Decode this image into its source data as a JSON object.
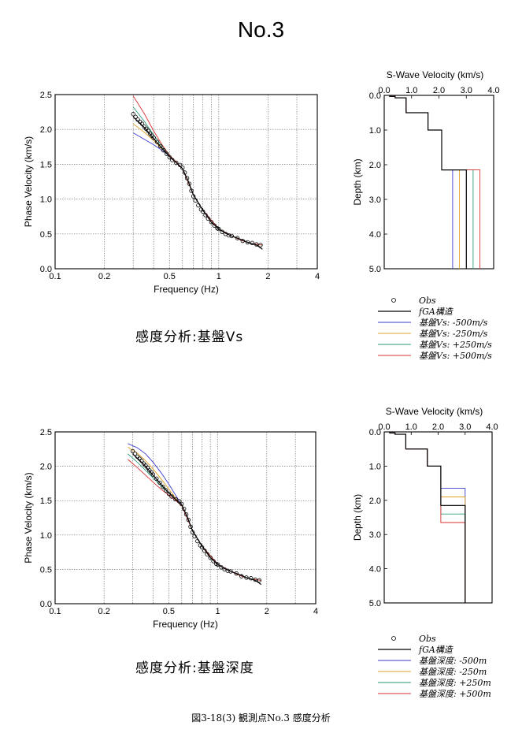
{
  "page": {
    "title": "No.3",
    "caption": "図3-18(3)   観測点No.3   感度分析"
  },
  "colors": {
    "obs": "#000000",
    "fga": "#000000",
    "m500": "#3b3bd0",
    "m250": "#e0a020",
    "p250": "#2a9a7a",
    "p500": "#d83030"
  },
  "chart_data": [
    {
      "id": "top-dispersion",
      "type": "line",
      "xlabel": "Frequency (Hz)",
      "ylabel": "Phase Velocity (km/s)",
      "xscale": "log",
      "xlim": [
        0.1,
        4
      ],
      "ylim": [
        0.0,
        2.5
      ],
      "xticks": [
        {
          "v": 0.1,
          "label": "0.1"
        },
        {
          "v": 0.2,
          "label": "0.2"
        },
        {
          "v": 0.5,
          "label": "0.5"
        },
        {
          "v": 1,
          "label": "1"
        },
        {
          "v": 2,
          "label": "2"
        },
        {
          "v": 4,
          "label": "4"
        }
      ],
      "yticks": [
        {
          "v": 0.0,
          "label": "0.0"
        },
        {
          "v": 0.5,
          "label": "0.5"
        },
        {
          "v": 1.0,
          "label": "1.0"
        },
        {
          "v": 1.5,
          "label": "1.5"
        },
        {
          "v": 2.0,
          "label": "2.0"
        },
        {
          "v": 2.5,
          "label": "2.5"
        }
      ],
      "grid": true,
      "series": [
        {
          "name": "Obs",
          "kind": "markers",
          "color": "#000000",
          "x": [
            0.3,
            0.31,
            0.32,
            0.33,
            0.34,
            0.35,
            0.36,
            0.37,
            0.38,
            0.39,
            0.4,
            0.42,
            0.44,
            0.46,
            0.48,
            0.5,
            0.52,
            0.55,
            0.58,
            0.6,
            0.62,
            0.64,
            0.66,
            0.68,
            0.7,
            0.72,
            0.75,
            0.78,
            0.8,
            0.83,
            0.86,
            0.9,
            0.94,
            0.98,
            1.0,
            1.05,
            1.1,
            1.15,
            1.2,
            1.3,
            1.4,
            1.5,
            1.6,
            1.7,
            1.8
          ],
          "y": [
            2.22,
            2.18,
            2.14,
            2.11,
            2.08,
            2.04,
            2.01,
            1.98,
            1.94,
            1.91,
            1.88,
            1.82,
            1.76,
            1.7,
            1.65,
            1.6,
            1.56,
            1.52,
            1.49,
            1.45,
            1.38,
            1.3,
            1.22,
            1.12,
            1.04,
            0.98,
            0.91,
            0.85,
            0.82,
            0.77,
            0.72,
            0.67,
            0.62,
            0.58,
            0.57,
            0.53,
            0.5,
            0.48,
            0.47,
            0.44,
            0.4,
            0.38,
            0.37,
            0.35,
            0.34
          ]
        },
        {
          "name": "fGA構造",
          "kind": "line",
          "color": "#000000",
          "x": [
            0.3,
            0.35,
            0.4,
            0.45,
            0.5,
            0.55,
            0.6,
            0.65,
            0.7,
            0.8,
            0.9,
            1.0,
            1.1,
            1.2,
            1.3,
            1.4,
            1.5,
            1.6,
            1.7,
            1.85
          ],
          "y": [
            2.18,
            2.03,
            1.87,
            1.73,
            1.61,
            1.52,
            1.44,
            1.26,
            1.06,
            0.84,
            0.67,
            0.57,
            0.51,
            0.47,
            0.44,
            0.41,
            0.38,
            0.36,
            0.34,
            0.28
          ]
        },
        {
          "name": "基盤Vs: -500m/s",
          "kind": "line",
          "color": "#3b3bd0",
          "x": [
            0.3,
            0.35,
            0.4,
            0.45,
            0.5,
            0.55,
            0.6,
            0.7,
            0.8,
            1.0,
            1.2,
            1.4,
            1.6,
            1.85
          ],
          "y": [
            1.95,
            1.86,
            1.78,
            1.7,
            1.62,
            1.53,
            1.44,
            1.06,
            0.84,
            0.57,
            0.47,
            0.4,
            0.36,
            0.34
          ]
        },
        {
          "name": "基盤Vs: -250m/s",
          "kind": "line",
          "color": "#e0a020",
          "x": [
            0.3,
            0.35,
            0.4,
            0.45,
            0.5,
            0.55,
            0.6,
            0.7,
            0.8,
            1.0,
            1.2,
            1.4,
            1.6,
            1.85
          ],
          "y": [
            2.08,
            1.96,
            1.84,
            1.72,
            1.62,
            1.53,
            1.44,
            1.06,
            0.84,
            0.57,
            0.47,
            0.4,
            0.36,
            0.34
          ]
        },
        {
          "name": "基盤Vs: +250m/s",
          "kind": "line",
          "color": "#2a9a7a",
          "x": [
            0.3,
            0.35,
            0.4,
            0.45,
            0.5,
            0.55,
            0.6,
            0.7,
            0.8,
            1.0,
            1.2,
            1.4,
            1.6,
            1.85
          ],
          "y": [
            2.32,
            2.12,
            1.92,
            1.76,
            1.62,
            1.53,
            1.44,
            1.06,
            0.84,
            0.57,
            0.47,
            0.4,
            0.36,
            0.34
          ]
        },
        {
          "name": "基盤Vs: +500m/s",
          "kind": "line",
          "color": "#d83030",
          "x": [
            0.3,
            0.35,
            0.4,
            0.45,
            0.5,
            0.55,
            0.6,
            0.7,
            0.8,
            1.0,
            1.2,
            1.4,
            1.6,
            1.85
          ],
          "y": [
            2.48,
            2.23,
            1.98,
            1.78,
            1.63,
            1.53,
            1.44,
            1.06,
            0.84,
            0.57,
            0.47,
            0.4,
            0.36,
            0.34
          ]
        }
      ]
    },
    {
      "id": "top-velocity-profile",
      "type": "line",
      "title": "S-Wave Velocity (km/s)",
      "ylabel": "Depth (km)",
      "xlim": [
        0.0,
        4.0
      ],
      "ylim": [
        0.0,
        5.0
      ],
      "xticks": [
        {
          "v": 0,
          "label": "0.0"
        },
        {
          "v": 1,
          "label": "1.0"
        },
        {
          "v": 2,
          "label": "2.0"
        },
        {
          "v": 3,
          "label": "3.0"
        },
        {
          "v": 4,
          "label": "4.0"
        }
      ],
      "yticks": [
        {
          "v": 0,
          "label": "0.0"
        },
        {
          "v": 1,
          "label": "1.0"
        },
        {
          "v": 2,
          "label": "2.0"
        },
        {
          "v": 3,
          "label": "3.0"
        },
        {
          "v": 4,
          "label": "4.0"
        },
        {
          "v": 5,
          "label": "5.0"
        }
      ],
      "series": [
        {
          "name": "fGA構造",
          "color": "#000000",
          "vs": [
            0.2,
            0.4,
            0.8,
            1.6,
            2.1,
            3.0
          ],
          "bottom": [
            0.03,
            0.07,
            0.5,
            1.0,
            2.15,
            5.0
          ]
        },
        {
          "name": "基盤Vs: -500m/s",
          "color": "#3b3bd0",
          "vs": [
            0.2,
            0.4,
            0.8,
            1.6,
            2.1,
            2.5
          ],
          "bottom": [
            0.03,
            0.07,
            0.5,
            1.0,
            2.15,
            5.0
          ]
        },
        {
          "name": "基盤Vs: -250m/s",
          "color": "#e0a020",
          "vs": [
            0.2,
            0.4,
            0.8,
            1.6,
            2.1,
            2.75
          ],
          "bottom": [
            0.03,
            0.07,
            0.5,
            1.0,
            2.15,
            5.0
          ]
        },
        {
          "name": "基盤Vs: +250m/s",
          "color": "#2a9a7a",
          "vs": [
            0.2,
            0.4,
            0.8,
            1.6,
            2.1,
            3.25
          ],
          "bottom": [
            0.03,
            0.07,
            0.5,
            1.0,
            2.15,
            5.0
          ]
        },
        {
          "name": "基盤Vs: +500m/s",
          "color": "#d83030",
          "vs": [
            0.2,
            0.4,
            0.8,
            1.6,
            2.1,
            3.5
          ],
          "bottom": [
            0.03,
            0.07,
            0.5,
            1.0,
            2.15,
            5.0
          ]
        }
      ]
    },
    {
      "id": "bottom-dispersion",
      "type": "line",
      "xlabel": "Frequency (Hz)",
      "ylabel": "Phase Velocity (km/s)",
      "xscale": "log",
      "xlim": [
        0.1,
        4
      ],
      "ylim": [
        0.0,
        2.5
      ],
      "xticks": [
        {
          "v": 0.1,
          "label": "0.1"
        },
        {
          "v": 0.2,
          "label": "0.2"
        },
        {
          "v": 0.5,
          "label": "0.5"
        },
        {
          "v": 1,
          "label": "1"
        },
        {
          "v": 2,
          "label": "2"
        },
        {
          "v": 4,
          "label": "4"
        }
      ],
      "yticks": [
        {
          "v": 0.0,
          "label": "0.0"
        },
        {
          "v": 0.5,
          "label": "0.5"
        },
        {
          "v": 1.0,
          "label": "1.0"
        },
        {
          "v": 1.5,
          "label": "1.5"
        },
        {
          "v": 2.0,
          "label": "2.0"
        },
        {
          "v": 2.5,
          "label": "2.5"
        }
      ],
      "grid": true,
      "series": [
        {
          "name": "Obs",
          "kind": "markers",
          "color": "#000000",
          "x": [
            0.3,
            0.31,
            0.32,
            0.33,
            0.34,
            0.35,
            0.36,
            0.37,
            0.38,
            0.39,
            0.4,
            0.42,
            0.44,
            0.46,
            0.48,
            0.5,
            0.52,
            0.55,
            0.58,
            0.6,
            0.62,
            0.64,
            0.66,
            0.68,
            0.7,
            0.72,
            0.75,
            0.78,
            0.8,
            0.83,
            0.86,
            0.9,
            0.94,
            0.98,
            1.0,
            1.05,
            1.1,
            1.15,
            1.2,
            1.3,
            1.4,
            1.5,
            1.6,
            1.7,
            1.8
          ],
          "y": [
            2.22,
            2.18,
            2.14,
            2.11,
            2.08,
            2.04,
            2.01,
            1.98,
            1.94,
            1.91,
            1.88,
            1.82,
            1.76,
            1.7,
            1.65,
            1.6,
            1.56,
            1.52,
            1.49,
            1.45,
            1.38,
            1.3,
            1.22,
            1.12,
            1.04,
            0.98,
            0.91,
            0.85,
            0.82,
            0.77,
            0.72,
            0.67,
            0.62,
            0.58,
            0.57,
            0.53,
            0.5,
            0.48,
            0.47,
            0.44,
            0.4,
            0.38,
            0.37,
            0.35,
            0.34
          ]
        },
        {
          "name": "fGA構造",
          "kind": "line",
          "color": "#000000",
          "x": [
            0.3,
            0.35,
            0.4,
            0.45,
            0.5,
            0.55,
            0.6,
            0.65,
            0.7,
            0.8,
            0.9,
            1.0,
            1.1,
            1.2,
            1.3,
            1.4,
            1.5,
            1.6,
            1.7,
            1.85
          ],
          "y": [
            2.18,
            2.03,
            1.87,
            1.73,
            1.61,
            1.52,
            1.44,
            1.26,
            1.06,
            0.84,
            0.67,
            0.57,
            0.51,
            0.47,
            0.44,
            0.41,
            0.38,
            0.36,
            0.34,
            0.28
          ]
        },
        {
          "name": "基盤深度: -500m",
          "kind": "line",
          "color": "#3b3bd0",
          "x": [
            0.28,
            0.32,
            0.36,
            0.4,
            0.45,
            0.5,
            0.55,
            0.6,
            0.7,
            0.8,
            1.0,
            1.2,
            1.4,
            1.6,
            1.85
          ],
          "y": [
            2.33,
            2.27,
            2.18,
            2.06,
            1.9,
            1.74,
            1.58,
            1.44,
            1.06,
            0.84,
            0.57,
            0.47,
            0.4,
            0.36,
            0.34
          ]
        },
        {
          "name": "基盤深度: -250m",
          "kind": "line",
          "color": "#e0a020",
          "x": [
            0.28,
            0.32,
            0.36,
            0.4,
            0.45,
            0.5,
            0.55,
            0.6,
            0.7,
            0.8,
            1.0,
            1.2,
            1.4,
            1.6,
            1.85
          ],
          "y": [
            2.28,
            2.19,
            2.08,
            1.96,
            1.81,
            1.67,
            1.54,
            1.44,
            1.06,
            0.84,
            0.57,
            0.47,
            0.4,
            0.36,
            0.34
          ]
        },
        {
          "name": "基盤深度: +250m",
          "kind": "line",
          "color": "#2a9a7a",
          "x": [
            0.28,
            0.32,
            0.36,
            0.4,
            0.45,
            0.5,
            0.55,
            0.6,
            0.7,
            0.8,
            1.0,
            1.2,
            1.4,
            1.6,
            1.85
          ],
          "y": [
            2.18,
            2.06,
            1.94,
            1.83,
            1.71,
            1.61,
            1.52,
            1.44,
            1.06,
            0.84,
            0.57,
            0.47,
            0.4,
            0.36,
            0.34
          ]
        },
        {
          "name": "基盤深度: +500m",
          "kind": "line",
          "color": "#d83030",
          "x": [
            0.28,
            0.32,
            0.36,
            0.4,
            0.45,
            0.5,
            0.55,
            0.6,
            0.7,
            0.8,
            1.0,
            1.2,
            1.4,
            1.6,
            1.85
          ],
          "y": [
            2.1,
            1.98,
            1.87,
            1.77,
            1.66,
            1.58,
            1.5,
            1.43,
            1.06,
            0.84,
            0.57,
            0.47,
            0.4,
            0.36,
            0.34
          ]
        }
      ]
    },
    {
      "id": "bottom-velocity-profile",
      "type": "line",
      "title": "S-Wave Velocity (km/s)",
      "ylabel": "Depth (km)",
      "xlim": [
        0.0,
        4.0
      ],
      "ylim": [
        0.0,
        5.0
      ],
      "xticks": [
        {
          "v": 0,
          "label": "0.0"
        },
        {
          "v": 1,
          "label": "1.0"
        },
        {
          "v": 2,
          "label": "2.0"
        },
        {
          "v": 3,
          "label": "3.0"
        },
        {
          "v": 4,
          "label": "4.0"
        }
      ],
      "yticks": [
        {
          "v": 0,
          "label": "0.0"
        },
        {
          "v": 1,
          "label": "1.0"
        },
        {
          "v": 2,
          "label": "2.0"
        },
        {
          "v": 3,
          "label": "3.0"
        },
        {
          "v": 4,
          "label": "4.0"
        },
        {
          "v": 5,
          "label": "5.0"
        }
      ],
      "series": [
        {
          "name": "fGA構造",
          "color": "#000000",
          "vs": [
            0.2,
            0.4,
            0.8,
            1.6,
            2.1,
            3.0
          ],
          "bottom": [
            0.03,
            0.07,
            0.5,
            1.0,
            2.15,
            5.0
          ]
        },
        {
          "name": "基盤深度: -500m",
          "color": "#3b3bd0",
          "vs": [
            0.2,
            0.4,
            0.8,
            1.6,
            2.1,
            3.0
          ],
          "bottom": [
            0.03,
            0.07,
            0.5,
            1.0,
            1.65,
            5.0
          ]
        },
        {
          "name": "基盤深度: -250m",
          "color": "#e0a020",
          "vs": [
            0.2,
            0.4,
            0.8,
            1.6,
            2.1,
            3.0
          ],
          "bottom": [
            0.03,
            0.07,
            0.5,
            1.0,
            1.9,
            5.0
          ]
        },
        {
          "name": "基盤深度: +250m",
          "color": "#2a9a7a",
          "vs": [
            0.2,
            0.4,
            0.8,
            1.6,
            2.1,
            3.0
          ],
          "bottom": [
            0.03,
            0.07,
            0.5,
            1.0,
            2.4,
            5.0
          ]
        },
        {
          "name": "基盤深度: +500m",
          "color": "#d83030",
          "vs": [
            0.2,
            0.4,
            0.8,
            1.6,
            2.1,
            3.0
          ],
          "bottom": [
            0.03,
            0.07,
            0.5,
            1.0,
            2.65,
            5.0
          ]
        }
      ]
    }
  ],
  "legends": {
    "top": [
      "Obs",
      "fGA構造",
      "基盤Vs: -500m/s",
      "基盤Vs: -250m/s",
      "基盤Vs: +250m/s",
      "基盤Vs: +500m/s"
    ],
    "bottom": [
      "Obs",
      "fGA構造",
      "基盤深度: -500m",
      "基盤深度: -250m",
      "基盤深度: +250m",
      "基盤深度: +500m"
    ]
  },
  "subtitles": {
    "top": "感度分析:基盤Vs",
    "bottom": "感度分析:基盤深度"
  }
}
